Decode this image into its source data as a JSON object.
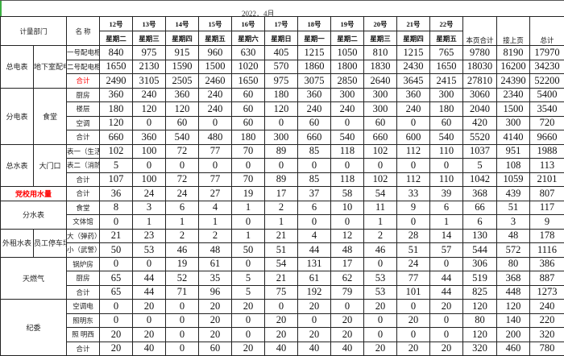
{
  "title": "2022．4月",
  "header": {
    "dept": "计量部门",
    "name": "名 称",
    "dates": [
      "12号",
      "13号",
      "14号",
      "15号",
      "16号",
      "17号",
      "18号",
      "19号",
      "20号",
      "21号",
      "22号"
    ],
    "weekdays": [
      "星期二",
      "星期三",
      "星期四",
      "星期五",
      "星期六",
      "星期日",
      "星期一",
      "星期二",
      "星期三",
      "星期四",
      "星期五"
    ],
    "page_total": "本页合计",
    "prev_page": "接上页",
    "grand_total": "总计"
  },
  "groups": [
    {
      "label": "总电表",
      "sub": "地下室配电房",
      "start": 0,
      "span": 3
    },
    {
      "label": "分电表",
      "sub": "食堂",
      "start": 3,
      "span": 4
    },
    {
      "label": "总水表",
      "sub": "大门口",
      "start": 7,
      "span": 3
    },
    {
      "label": "党校用水量",
      "start": 10,
      "span": 1,
      "highlight": "#ff0000"
    },
    {
      "label": "分水表",
      "start": 11,
      "span": 2
    },
    {
      "label": "外租水表",
      "sub": "员工停车场",
      "start": 13,
      "span": 2
    },
    {
      "label": "天燃气",
      "start": 15,
      "span": 3
    },
    {
      "label": "纪委",
      "start": 18,
      "span": 4
    }
  ],
  "rows": [
    {
      "name": "一号配电柜",
      "values": [
        840,
        975,
        915,
        960,
        630,
        405,
        1215,
        1050,
        810,
        1215,
        765,
        9780,
        8190,
        17970
      ]
    },
    {
      "name": "二号配电柜",
      "values": [
        1650,
        2130,
        1590,
        1500,
        1020,
        570,
        1860,
        1800,
        1830,
        2430,
        1650,
        18030,
        16200,
        34230
      ]
    },
    {
      "name": "合计",
      "name_color": "#ff0000",
      "values": [
        2490,
        3105,
        2505,
        2460,
        1650,
        975,
        3075,
        2850,
        2640,
        3645,
        2415,
        27810,
        24390,
        52200
      ]
    },
    {
      "name": "厨房",
      "values": [
        360,
        240,
        360,
        240,
        60,
        180,
        360,
        300,
        300,
        360,
        300,
        3060,
        2340,
        5400
      ]
    },
    {
      "name": "楼层",
      "values": [
        180,
        120,
        120,
        240,
        60,
        120,
        240,
        240,
        300,
        240,
        180,
        2040,
        1500,
        3540
      ]
    },
    {
      "name": "空调",
      "values": [
        120,
        0,
        60,
        0,
        60,
        0,
        60,
        0,
        60,
        0,
        60,
        420,
        300,
        720
      ]
    },
    {
      "name": "合计",
      "values": [
        660,
        360,
        540,
        480,
        180,
        300,
        660,
        540,
        660,
        600,
        540,
        5520,
        4140,
        9660
      ]
    },
    {
      "name": "表一（生活）",
      "values": [
        102,
        100,
        72,
        77,
        70,
        89,
        85,
        118,
        102,
        112,
        110,
        1037,
        951,
        1988
      ]
    },
    {
      "name": "表二（消防）",
      "values": [
        5,
        0,
        0,
        0,
        0,
        0,
        0,
        0,
        0,
        0,
        0,
        5,
        108,
        113
      ]
    },
    {
      "name": "合计",
      "values": [
        107,
        100,
        72,
        77,
        70,
        89,
        85,
        118,
        102,
        112,
        110,
        1042,
        1059,
        2101
      ]
    },
    {
      "name": "合计",
      "values": [
        36,
        24,
        24,
        27,
        19,
        17,
        37,
        58,
        54,
        33,
        39,
        368,
        439,
        807
      ]
    },
    {
      "name": "食堂",
      "values": [
        8,
        3,
        6,
        4,
        1,
        2,
        6,
        10,
        11,
        9,
        6,
        66,
        51,
        117
      ]
    },
    {
      "name": "文体馆",
      "values": [
        0,
        1,
        1,
        1,
        0,
        1,
        0,
        0,
        1,
        0,
        1,
        6,
        3,
        9
      ]
    },
    {
      "name": "大（弹药）",
      "values": [
        21,
        23,
        2,
        2,
        1,
        21,
        4,
        12,
        2,
        28,
        14,
        130,
        48,
        178
      ]
    },
    {
      "name": "小（武警）",
      "values": [
        50,
        53,
        46,
        48,
        50,
        51,
        44,
        48,
        46,
        51,
        57,
        544,
        572,
        1116
      ]
    },
    {
      "name": "锅炉房",
      "values": [
        0,
        0,
        19,
        61,
        0,
        54,
        131,
        17,
        0,
        24,
        0,
        306,
        80,
        386
      ]
    },
    {
      "name": "厨房",
      "values": [
        65,
        44,
        52,
        35,
        5,
        21,
        61,
        62,
        53,
        77,
        44,
        519,
        368,
        887
      ]
    },
    {
      "name": "合计",
      "values": [
        65,
        44,
        71,
        96,
        5,
        75,
        192,
        79,
        53,
        101,
        44,
        825,
        448,
        1273
      ]
    },
    {
      "name": "空调电",
      "values": [
        0,
        20,
        0,
        20,
        20,
        0,
        20,
        0,
        20,
        0,
        20,
        120,
        120,
        240
      ]
    },
    {
      "name": "照明东",
      "values": [
        0,
        0,
        0,
        20,
        0,
        20,
        0,
        20,
        0,
        20,
        0,
        80,
        140,
        220
      ]
    },
    {
      "name": "照 明西",
      "values": [
        20,
        20,
        0,
        20,
        0,
        20,
        20,
        20,
        0,
        0,
        0,
        120,
        200,
        320
      ]
    },
    {
      "name": "合计",
      "values": [
        20,
        40,
        0,
        60,
        20,
        40,
        40,
        40,
        20,
        20,
        20,
        320,
        460,
        780
      ]
    }
  ]
}
